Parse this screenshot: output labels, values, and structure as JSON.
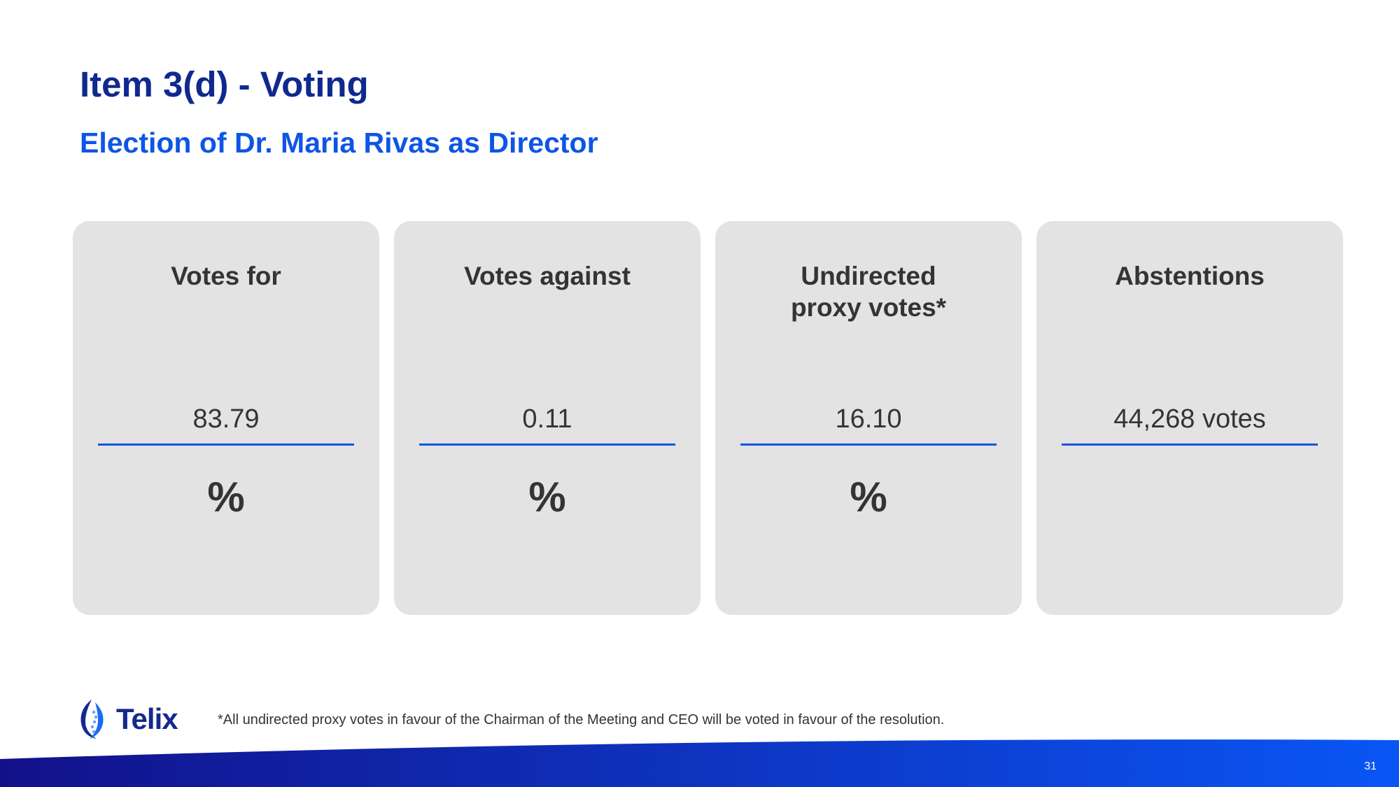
{
  "title": "Item 3(d) - Voting",
  "subtitle": "Election of Dr. Maria Rivas as Director",
  "cards": [
    {
      "heading": "Votes for",
      "value": "83.79",
      "unit": "%"
    },
    {
      "heading": "Votes against",
      "value": "0.11",
      "unit": "%"
    },
    {
      "heading": "Undirected\nproxy votes*",
      "value": "16.10",
      "unit": "%"
    },
    {
      "heading": "Abstentions",
      "value": "44,268 votes",
      "unit": ""
    }
  ],
  "footer": {
    "logo_text": "Telix",
    "footnote": "*All undirected proxy votes in favour of the Chairman of the Meeting and CEO will be voted in favour of the resolution.",
    "page_number": "31"
  },
  "colors": {
    "title": "#10298f",
    "subtitle": "#0e55e6",
    "card_background": "#e3e3e3",
    "rule": "#0e55e6",
    "band_start": "#12118a",
    "band_end": "#0a56f5"
  }
}
